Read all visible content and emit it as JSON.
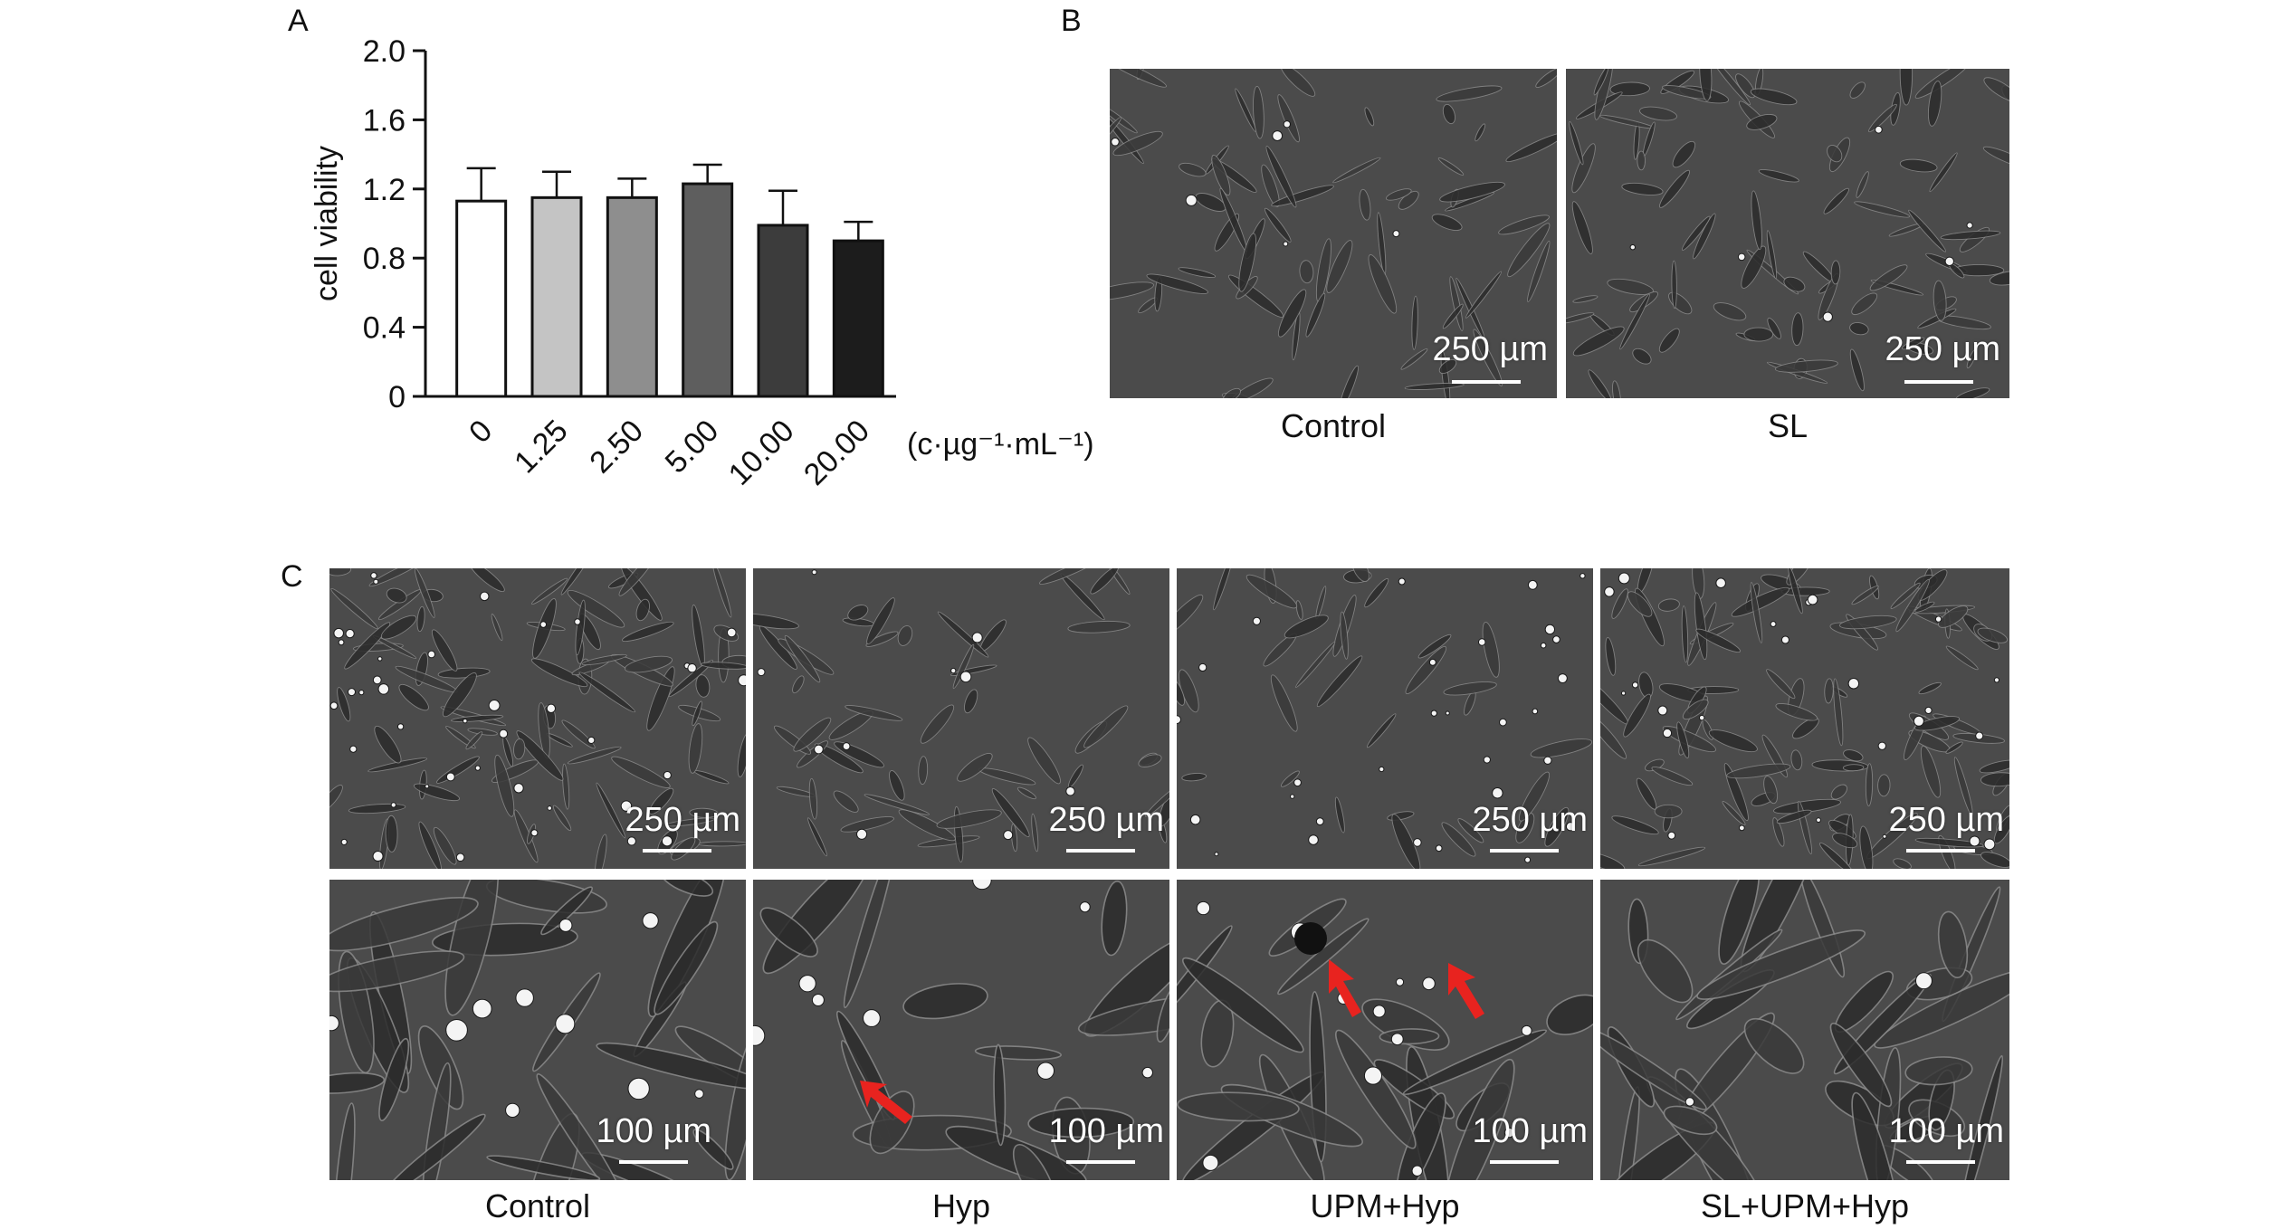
{
  "panels": {
    "a": {
      "letter": "A"
    },
    "b": {
      "letter": "B",
      "images": [
        {
          "caption": "Control",
          "scale": "250 µm"
        },
        {
          "caption": "SL",
          "scale": "250 µm"
        }
      ]
    },
    "c": {
      "letter": "C",
      "captions": [
        "Control",
        "Hyp",
        "UPM+Hyp",
        "SL+UPM+Hyp"
      ],
      "top_scale": "250 µm",
      "bottom_scale": "100 µm",
      "arrow_color": "#e8231f"
    }
  },
  "chart_data": {
    "type": "bar",
    "categories": [
      "0",
      "1.25",
      "2.50",
      "5.00",
      "10.00",
      "20.00"
    ],
    "values": [
      1.13,
      1.15,
      1.15,
      1.23,
      0.99,
      0.9
    ],
    "errors": [
      0.19,
      0.15,
      0.11,
      0.11,
      0.2,
      0.11
    ],
    "ylabel": "cell viability",
    "xunit": "(c·µg⁻¹·mL⁻¹)",
    "ylim": [
      0,
      2.0
    ],
    "yticks": [
      "0",
      "0.4",
      "0.8",
      "1.2",
      "1.6",
      "2.0"
    ],
    "bar_colors": [
      "#ffffff",
      "#c4c4c4",
      "#8e8e8e",
      "#5e5e5e",
      "#3c3c3c",
      "#1c1c1c"
    ],
    "grid": false
  }
}
